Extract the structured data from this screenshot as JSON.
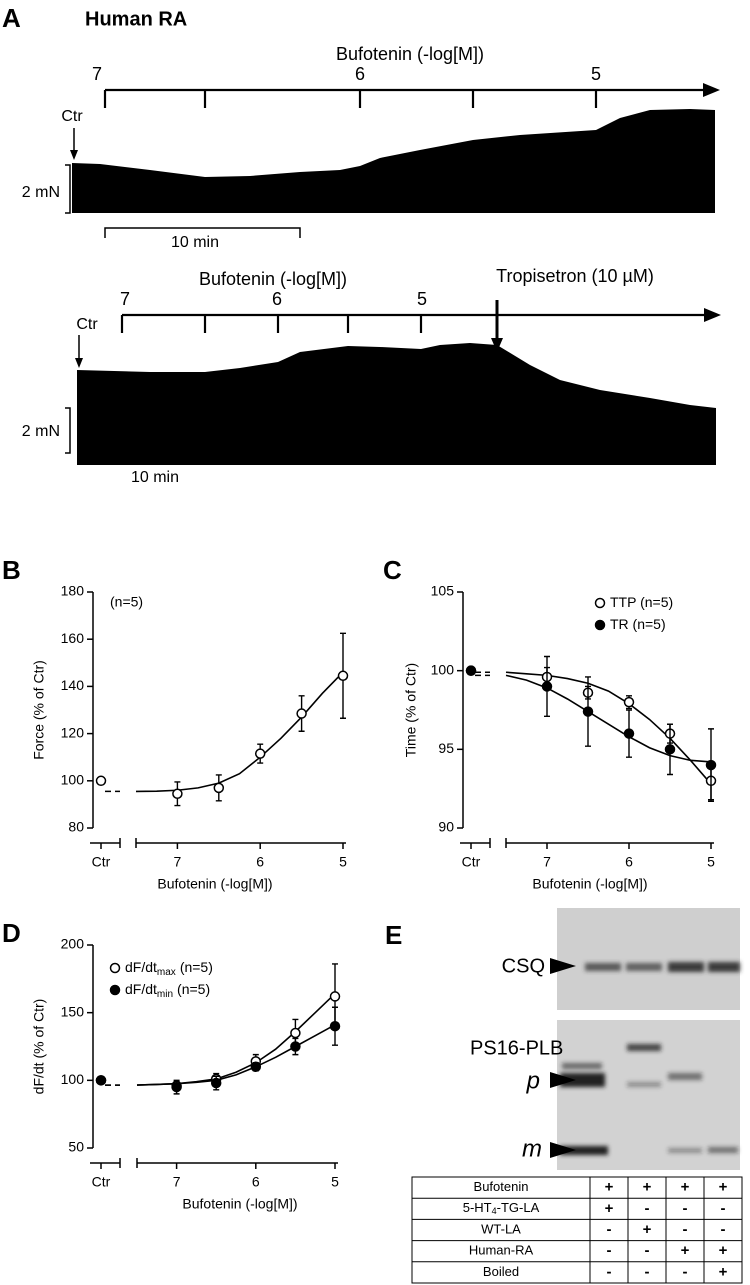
{
  "panel_a": {
    "label": "A",
    "title": "Human RA",
    "trace1": {
      "axis_label": "Bufotenin (-log[M])",
      "ticks": [
        7,
        6,
        5
      ],
      "control": "Ctr",
      "scale": "2 mN",
      "time": "10 min"
    },
    "trace2": {
      "axis_label": "Bufotenin (-log[M])",
      "ticks": [
        7,
        6,
        5
      ],
      "drug": "Tropisetron (10 µM)",
      "control": "Ctr",
      "scale": "2 mN",
      "time": "10 min"
    }
  },
  "chart_data": [
    {
      "type": "line",
      "panel_label": "B",
      "ylabel": "Force (% of Ctr)",
      "xlabel": "Bufotenin (-log[M])",
      "annotation": "(n=5)",
      "control_label": "Ctr",
      "x": [
        7,
        6.5,
        6,
        5.5,
        5
      ],
      "xlim": [
        7.5,
        5
      ],
      "xticks": [
        7,
        6,
        5
      ],
      "ylim": [
        80,
        180
      ],
      "yticks": [
        80,
        100,
        120,
        140,
        160,
        180
      ],
      "fit_x": [
        7.5,
        7.25,
        7,
        6.75,
        6.5,
        6.25,
        6,
        5.75,
        5.5,
        5.25,
        5
      ],
      "series": [
        {
          "marker": "open",
          "color": "#000000",
          "control": 100,
          "values": [
            94.5,
            97,
            111.5,
            128.5,
            144.5
          ],
          "errors": [
            5,
            5.5,
            4,
            7.5,
            18
          ],
          "fit": [
            95.5,
            95.6,
            96,
            97,
            99,
            103,
            110,
            118,
            127,
            137,
            146
          ]
        }
      ]
    },
    {
      "type": "line",
      "panel_label": "C",
      "ylabel": "Time (% of Ctr)",
      "xlabel": "Bufotenin (-log[M])",
      "control_label": "Ctr",
      "x": [
        7,
        6.5,
        6,
        5.5,
        5
      ],
      "xlim": [
        7.5,
        5
      ],
      "xticks": [
        7,
        6,
        5
      ],
      "ylim": [
        90,
        105
      ],
      "yticks": [
        90,
        95,
        100,
        105
      ],
      "fit_x": [
        7.5,
        7.25,
        7,
        6.75,
        6.5,
        6.25,
        6,
        5.75,
        5.5,
        5.25,
        5
      ],
      "series": [
        {
          "name": "TTP (n=5)",
          "marker": "open",
          "color": "#000000",
          "control": 100,
          "values": [
            99.6,
            98.6,
            98.0,
            96.0,
            93.0
          ],
          "errors": [
            0.6,
            0.4,
            0.4,
            0.6,
            1.2
          ],
          "fit": [
            99.9,
            99.8,
            99.7,
            99.5,
            99.2,
            98.7,
            97.9,
            96.9,
            95.7,
            94.3,
            92.8
          ]
        },
        {
          "name": "TR (n=5)",
          "marker": "filled",
          "color": "#000000",
          "control": 100,
          "values": [
            99.0,
            97.4,
            96.0,
            95.0,
            94.0
          ],
          "errors": [
            1.9,
            2.2,
            1.5,
            1.6,
            2.3
          ],
          "fit": [
            99.7,
            99.4,
            98.9,
            98.2,
            97.4,
            96.6,
            95.8,
            95.1,
            94.6,
            94.3,
            94.2
          ]
        }
      ]
    },
    {
      "type": "line",
      "panel_label": "D",
      "ylabel": "dF/dt (% of Ctr)",
      "xlabel": "Bufotenin (-log[M])",
      "control_label": "Ctr",
      "x": [
        7,
        6.5,
        6,
        5.5,
        5
      ],
      "xlim": [
        7.5,
        5
      ],
      "xticks": [
        7,
        6,
        5
      ],
      "ylim": [
        50,
        200
      ],
      "yticks": [
        50,
        100,
        150,
        200
      ],
      "fit_x": [
        7.5,
        7.25,
        7,
        6.75,
        6.5,
        6.25,
        6,
        5.75,
        5.5,
        5.25,
        5
      ],
      "series": [
        {
          "name": "dF/dt",
          "name_subscript": "max",
          "name_note": "(n=5)",
          "marker": "open",
          "color": "#000000",
          "control": 100,
          "values": [
            96,
            101,
            114,
            135,
            162
          ],
          "errors": [
            3,
            4,
            5,
            10,
            24
          ],
          "fit": [
            96.5,
            97,
            97.5,
            99,
            101,
            106,
            113,
            123,
            136,
            150,
            164
          ]
        },
        {
          "name": "dF/dt",
          "name_subscript": "min",
          "name_note": "(n=5)",
          "marker": "filled",
          "color": "#000000",
          "control": 100,
          "values": [
            95,
            98,
            110,
            125,
            140
          ],
          "errors": [
            5,
            5,
            3,
            6,
            14
          ],
          "fit": [
            96.5,
            97,
            97.5,
            98.5,
            100,
            104,
            110,
            117,
            125,
            133,
            141
          ]
        }
      ]
    }
  ],
  "panel_e": {
    "label": "E",
    "bands": {
      "csq": "CSQ",
      "plb": "PS16-PLB",
      "p": "p",
      "m": "m"
    },
    "table": {
      "rows": [
        {
          "label": "Bufotenin",
          "cells": [
            "+",
            "+",
            "+",
            "+"
          ]
        },
        {
          "label": {
            "text": "5-HT",
            "sub": "4",
            "after": "-TG-LA"
          },
          "cells": [
            "+",
            "-",
            "-",
            "-"
          ]
        },
        {
          "label": "WT-LA",
          "cells": [
            "-",
            "+",
            "-",
            "-"
          ]
        },
        {
          "label": "Human-RA",
          "cells": [
            "-",
            "-",
            "+",
            "+"
          ]
        },
        {
          "label": "Boiled",
          "cells": [
            "-",
            "-",
            "-",
            "+"
          ]
        }
      ]
    }
  }
}
